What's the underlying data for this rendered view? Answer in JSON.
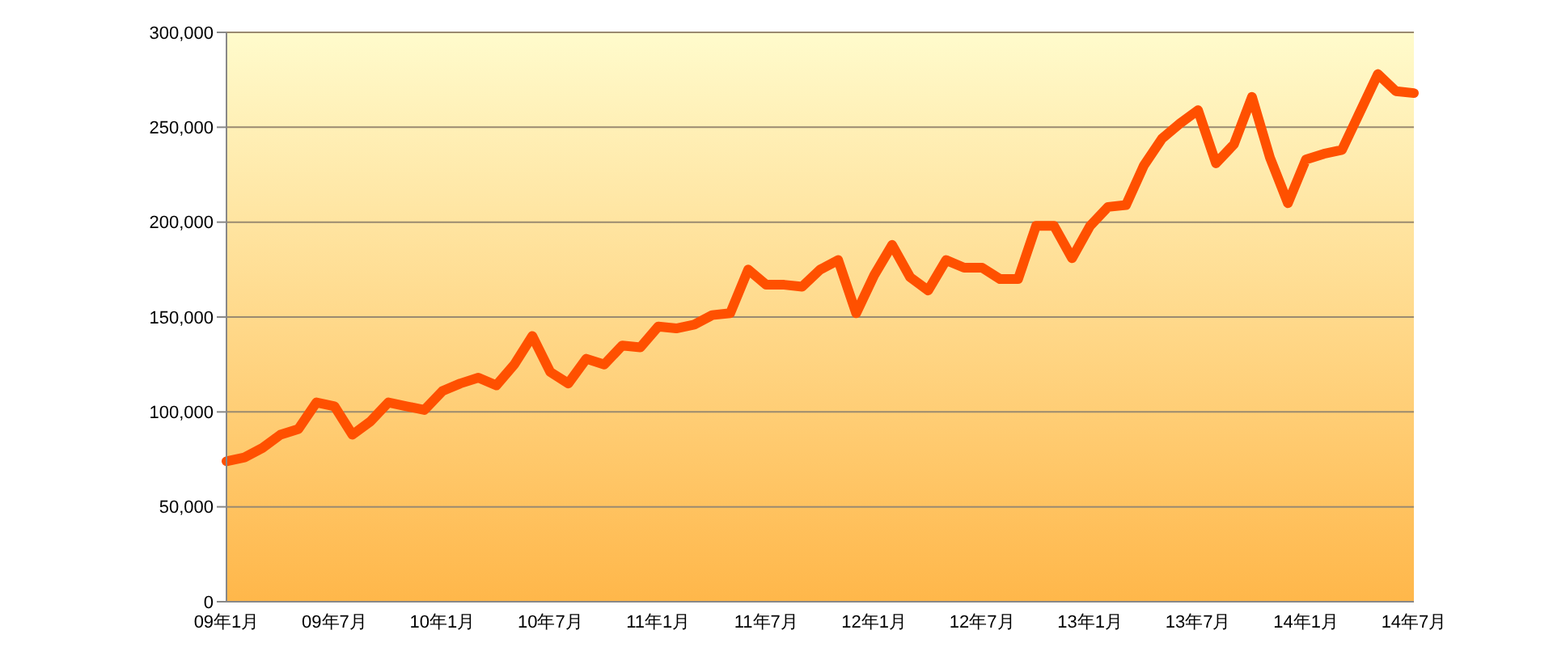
{
  "chart_data": {
    "type": "line",
    "categories": [
      "09年1月",
      null,
      null,
      null,
      null,
      null,
      "09年7月",
      null,
      null,
      null,
      null,
      null,
      "10年1月",
      null,
      null,
      null,
      null,
      null,
      "10年7月",
      null,
      null,
      null,
      null,
      null,
      "11年1月",
      null,
      null,
      null,
      null,
      null,
      "11年7月",
      null,
      null,
      null,
      null,
      null,
      "12年1月",
      null,
      null,
      null,
      null,
      null,
      "12年7月",
      null,
      null,
      null,
      null,
      null,
      "13年1月",
      null,
      null,
      null,
      null,
      null,
      "13年7月",
      null,
      null,
      null,
      null,
      null,
      "14年1月",
      null,
      null,
      null,
      null,
      null,
      "14年7月"
    ],
    "series": [
      {
        "color": "#ff5000",
        "values": [
          74000,
          76000,
          81000,
          88000,
          91000,
          105000,
          103000,
          88000,
          95000,
          105000,
          103000,
          101000,
          111000,
          115000,
          118000,
          114000,
          125000,
          140000,
          121000,
          115000,
          128000,
          125000,
          135000,
          134000,
          145000,
          144000,
          146000,
          151000,
          152000,
          175000,
          167000,
          167000,
          166000,
          175000,
          180000,
          152000,
          172000,
          188000,
          171000,
          164000,
          180000,
          176000,
          176000,
          170000,
          170000,
          198000,
          198000,
          181000,
          198000,
          208000,
          209000,
          230000,
          244000,
          252000,
          259000,
          231000,
          241000,
          266000,
          234000,
          210000,
          233000,
          236000,
          238000,
          258000,
          278000,
          269000,
          268000
        ]
      }
    ],
    "ylim": [
      0,
      300000
    ],
    "yticks": [
      0,
      {
        "value": 50000,
        "label": "50,000"
      },
      {
        "value": 100000,
        "label": "100,000"
      },
      {
        "value": 150000,
        "label": "150,000"
      },
      {
        "value": 200000,
        "label": "200,000"
      },
      {
        "value": 250000,
        "label": "250,000"
      },
      {
        "value": 300000,
        "label": "300,000"
      }
    ],
    "grid": "y",
    "marker": "none",
    "line_style": "solid"
  }
}
